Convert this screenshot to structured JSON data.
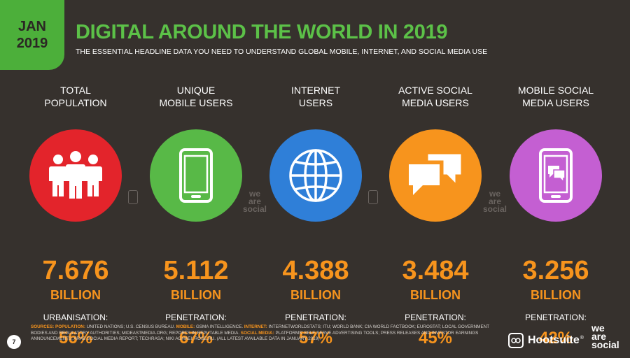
{
  "badge": {
    "month": "JAN",
    "year": "2019"
  },
  "header": {
    "title": "DIGITAL AROUND THE WORLD IN 2019",
    "subtitle": "THE ESSENTIAL HEADLINE DATA YOU NEED TO UNDERSTAND GLOBAL MOBILE, INTERNET, AND SOCIAL MEDIA USE"
  },
  "colors": {
    "background": "#36312d",
    "badge_green": "#4caf3a",
    "title_green": "#5cc148",
    "accent_orange": "#f7941d",
    "population_red": "#e3242b",
    "mobile_green": "#58b947",
    "internet_blue": "#2f7fd8",
    "social_orange": "#f7941d",
    "mobile_social_purple": "#c45fd2"
  },
  "stats": [
    {
      "label_line1": "TOTAL",
      "label_line2": "POPULATION",
      "icon": "people-icon",
      "value": "7.676",
      "unit": "BILLION",
      "sub_label": "URBANISATION:",
      "percent": "56%"
    },
    {
      "label_line1": "UNIQUE",
      "label_line2": "MOBILE USERS",
      "icon": "mobile-phone-icon",
      "value": "5.112",
      "unit": "BILLION",
      "sub_label": "PENETRATION:",
      "percent": "67%"
    },
    {
      "label_line1": "INTERNET",
      "label_line2": "USERS",
      "icon": "globe-icon",
      "value": "4.388",
      "unit": "BILLION",
      "sub_label": "PENETRATION:",
      "percent": "57%"
    },
    {
      "label_line1": "ACTIVE SOCIAL",
      "label_line2": "MEDIA USERS",
      "icon": "chat-bubbles-icon",
      "value": "3.484",
      "unit": "BILLION",
      "sub_label": "PENETRATION:",
      "percent": "45%"
    },
    {
      "label_line1": "MOBILE SOCIAL",
      "label_line2": "MEDIA USERS",
      "icon": "phone-chat-icon",
      "value": "3.256",
      "unit": "BILLION",
      "sub_label": "PENETRATION:",
      "percent": "42%"
    }
  ],
  "watermark": {
    "line1": "we",
    "line2": "are",
    "line3": "social"
  },
  "footer": {
    "page_number": "7",
    "sources_label": "SOURCES:",
    "pop_label": "POPULATION:",
    "pop_text": "UNITED NATIONS; U.S. CENSUS BUREAU.",
    "mobile_label": "MOBILE:",
    "mobile_text": "GSMA INTELLIGENCE.",
    "internet_label": "INTERNET:",
    "internet_text": "INTERNETWORLDSTATS; ITU; WORLD BANK; CIA WORLD FACTBOOK; EUROSTAT; LOCAL GOVERNMENT BODIES AND REGULATORY AUTHORITIES; MIDEASTMEDIA.ORG; REPORTS IN REPUTABLE MEDIA.",
    "social_label": "SOCIAL MEDIA:",
    "social_text": "PLATFORMS' SELF-SERVE ADVERTISING TOOLS; PRESS RELEASES AND INVESTOR EARNINGS ANNOUNCEMENTS; ARAB SOCIAL MEDIA REPORT; TECHRASA; NIKI AGHAEI; ROSE.RU. (ALL LATEST AVAILABLE DATA IN JANUARY 2019).",
    "hootsuite": "Hootsuite",
    "hootsuite_tm": "®",
    "was_line1": "we",
    "was_line2": "are",
    "was_line3": "social"
  }
}
